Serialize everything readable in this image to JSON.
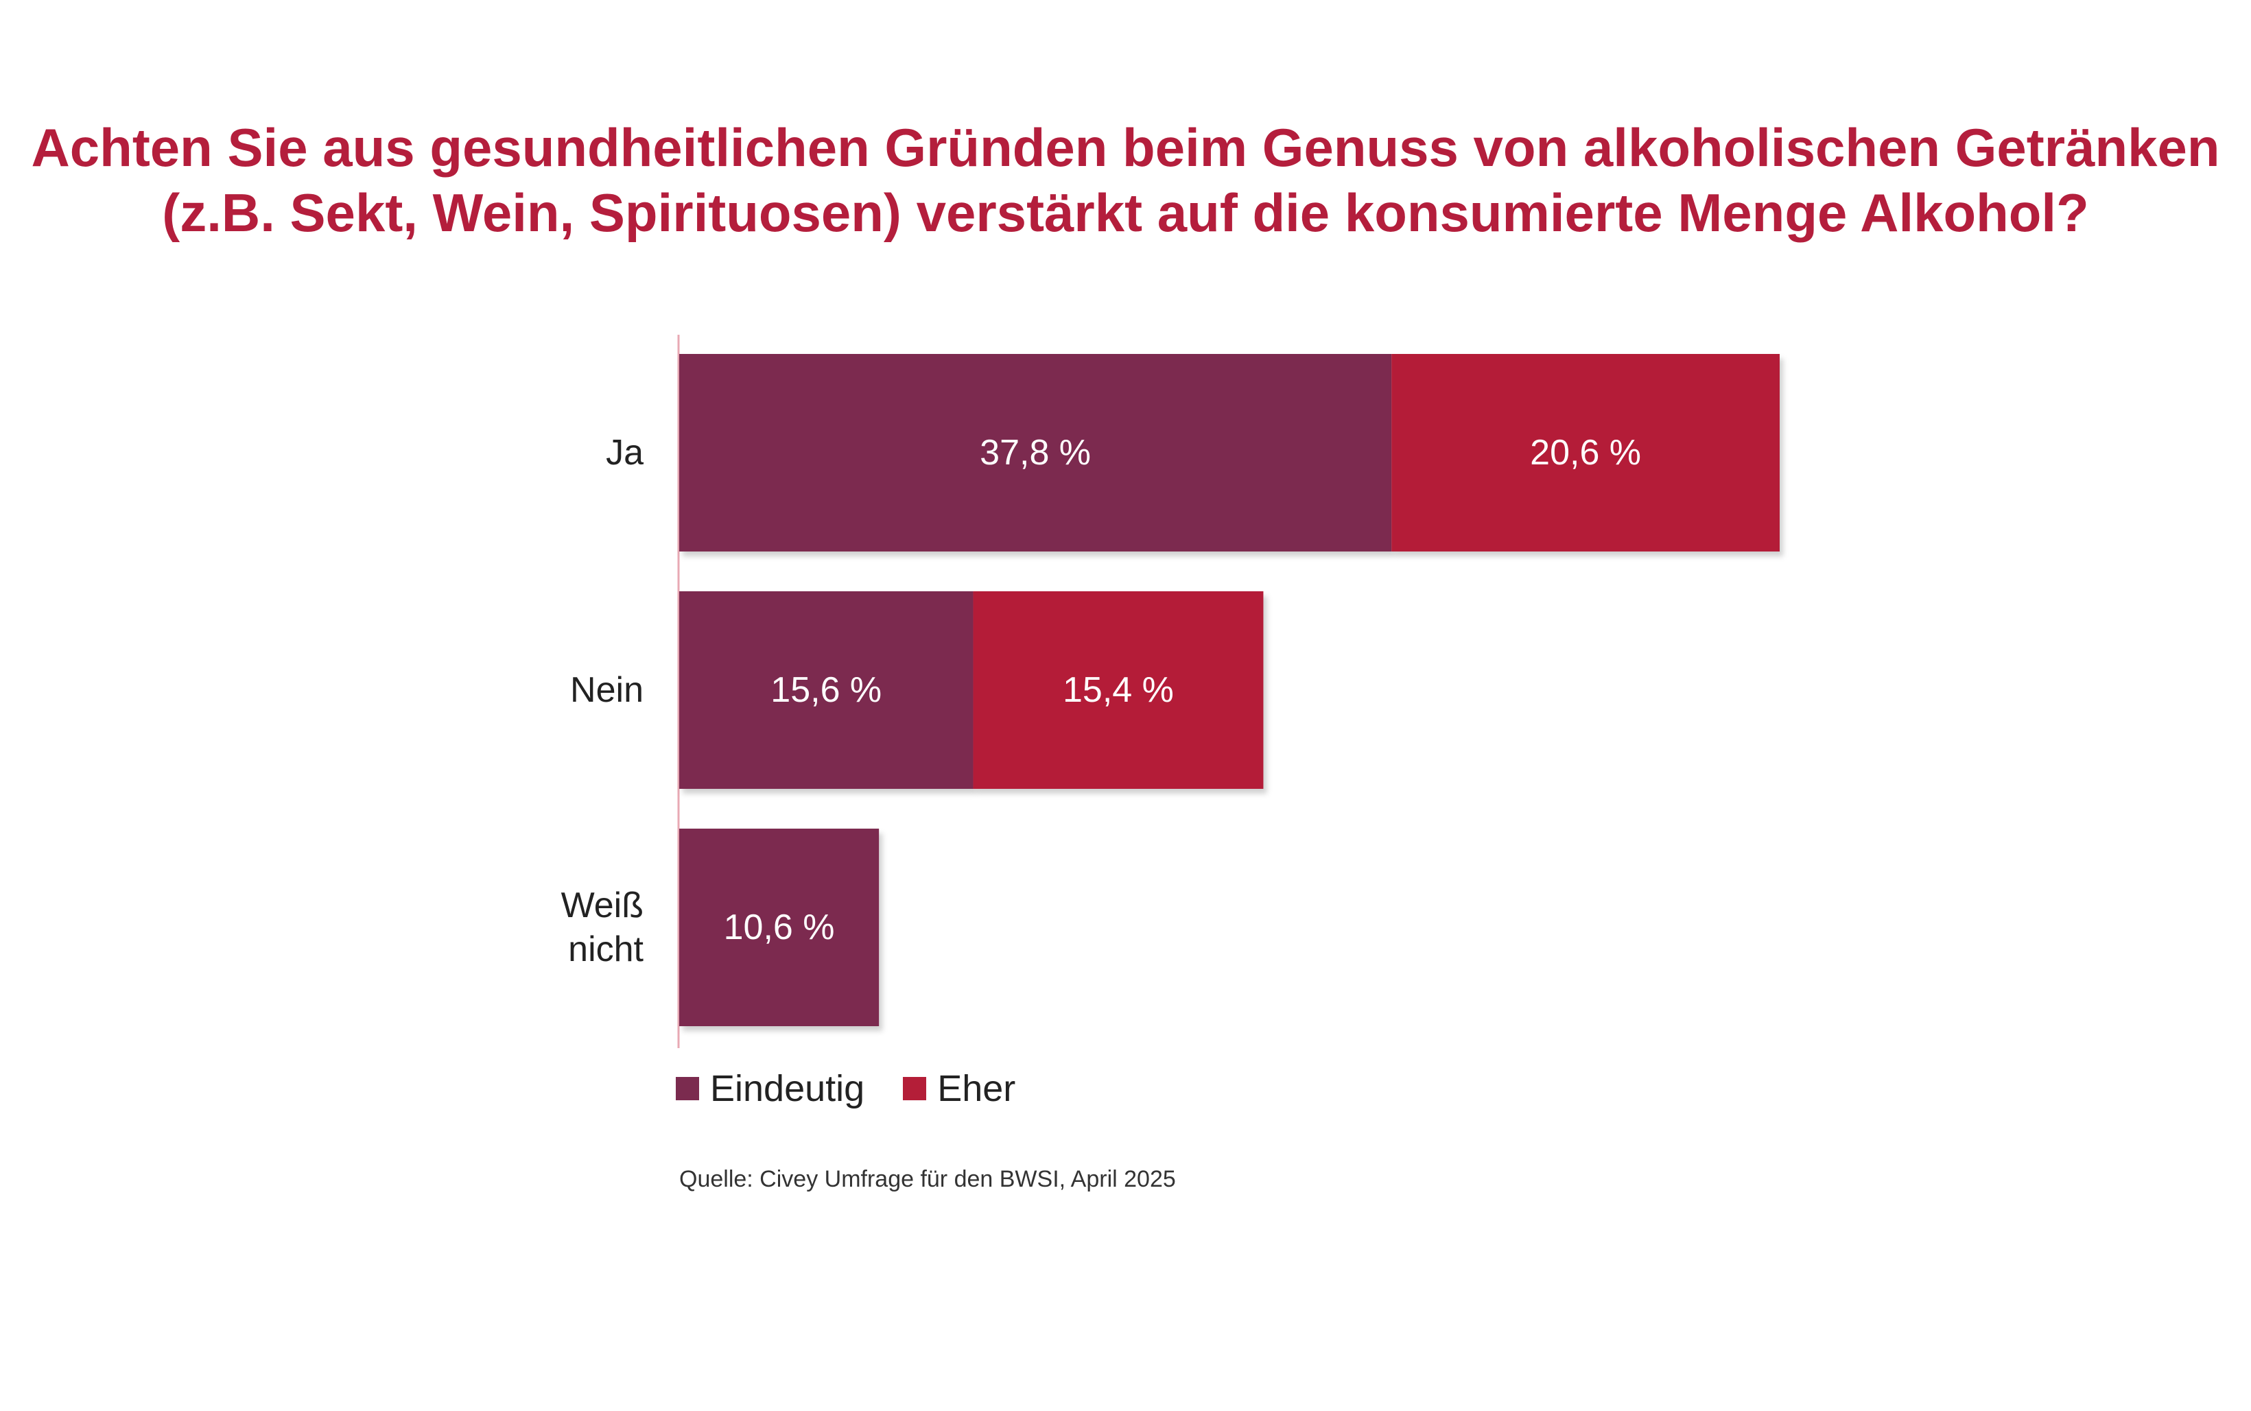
{
  "chart_data": {
    "type": "bar",
    "orientation": "horizontal",
    "stacked": true,
    "title": "Achten Sie aus gesundheitlichen Gründen beim Genuss von alkoholischen Getränken (z.B. Sekt, Wein, Spirituosen) verstärkt auf die konsumierte Menge Alkohol?",
    "title_lines": [
      "Achten Sie aus gesundheitlichen Gründen beim Genuss von alkoholischen Getränken",
      "(z.B. Sekt, Wein, Spirituosen) verstärkt auf die konsumierte Menge Alkohol?"
    ],
    "categories": [
      "Ja",
      "Nein",
      "Weiß nicht"
    ],
    "category_lines": [
      [
        "Ja"
      ],
      [
        "Nein"
      ],
      [
        "Weiß",
        "nicht"
      ]
    ],
    "series": [
      {
        "name": "Eindeutig",
        "color": "#7b2b4f",
        "values": [
          37.8,
          15.6,
          10.6
        ],
        "labels": [
          "37,8 %",
          "15,6 %",
          "10,6 %"
        ]
      },
      {
        "name": "Eher",
        "color": "#b41e38",
        "values": [
          20.6,
          15.4,
          null
        ],
        "labels": [
          "20,6 %",
          "15,4 %",
          ""
        ]
      }
    ],
    "xlim": [
      0,
      58.4
    ],
    "xlabel": "",
    "ylabel": "",
    "grid": false,
    "legend_position": "bottom-left",
    "source": "Quelle: Civey Umfrage für den BWSI, April 2025"
  },
  "colors": {
    "title": "#b41e3c",
    "axis_line": "#e8a9b4",
    "bar_label": "#ffffff",
    "category_label": "#222222"
  }
}
